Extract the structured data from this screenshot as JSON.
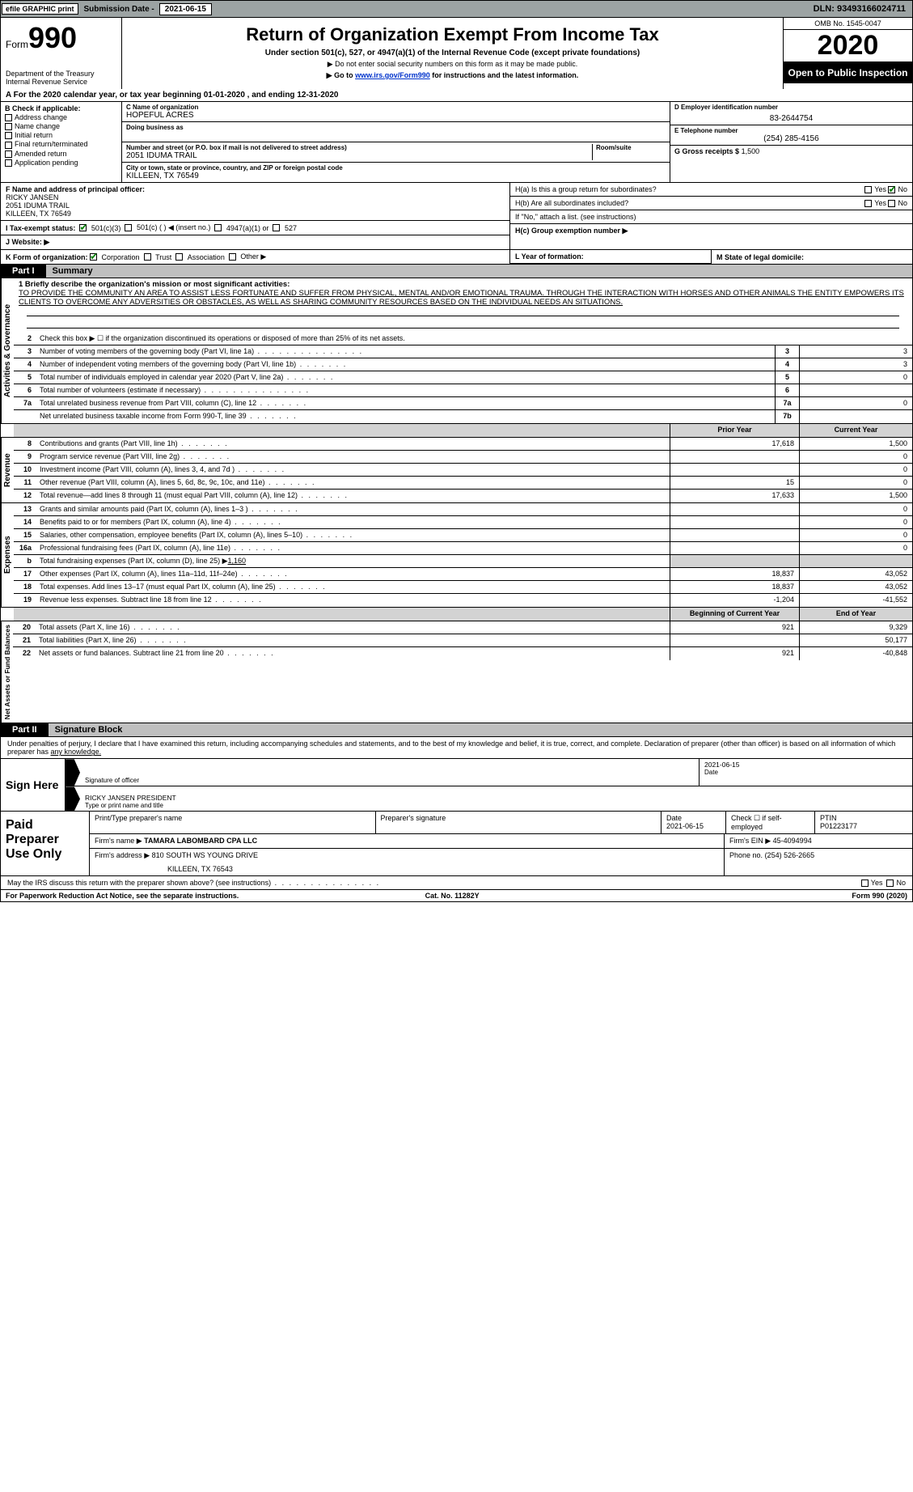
{
  "topbar": {
    "efile": "efile GRAPHIC print",
    "sub_label": "Submission Date -",
    "sub_date": "2021-06-15",
    "dln": "DLN: 93493166024711"
  },
  "header": {
    "form_prefix": "Form",
    "form_no": "990",
    "dept": "Department of the Treasury",
    "irs": "Internal Revenue Service",
    "title": "Return of Organization Exempt From Income Tax",
    "sub1": "Under section 501(c), 527, or 4947(a)(1) of the Internal Revenue Code (except private foundations)",
    "sub2": "▶ Do not enter social security numbers on this form as it may be made public.",
    "sub3_pre": "▶ Go to ",
    "sub3_link": "www.irs.gov/Form990",
    "sub3_post": " for instructions and the latest information.",
    "omb": "OMB No. 1545-0047",
    "year": "2020",
    "open": "Open to Public Inspection"
  },
  "period": {
    "line": "A For the 2020 calendar year, or tax year beginning 01-01-2020   , and ending 12-31-2020"
  },
  "boxB": {
    "hdr": "B Check if applicable:",
    "items": [
      "Address change",
      "Name change",
      "Initial return",
      "Final return/terminated",
      "Amended return",
      "Application pending"
    ]
  },
  "boxC": {
    "lbl": "C Name of organization",
    "name": "HOPEFUL ACRES",
    "dba_lbl": "Doing business as",
    "addr_lbl": "Number and street (or P.O. box if mail is not delivered to street address)",
    "addr": "2051 IDUMA TRAIL",
    "room_lbl": "Room/suite",
    "city_lbl": "City or town, state or province, country, and ZIP or foreign postal code",
    "city": "KILLEEN, TX  76549"
  },
  "boxD": {
    "lbl": "D Employer identification number",
    "val": "83-2644754"
  },
  "boxE": {
    "lbl": "E Telephone number",
    "val": "(254) 285-4156"
  },
  "boxG": {
    "lbl": "G Gross receipts $",
    "val": "1,500"
  },
  "boxF": {
    "lbl": "F  Name and address of principal officer:",
    "name": "RICKY JANSEN",
    "addr1": "2051 IDUMA TRAIL",
    "addr2": "KILLEEN, TX  76549"
  },
  "boxH": {
    "a": "H(a)  Is this a group return for subordinates?",
    "b": "H(b)  Are all subordinates included?",
    "ifno": "If \"No,\" attach a list. (see instructions)",
    "c": "H(c)  Group exemption number ▶",
    "yes": "Yes",
    "no": "No"
  },
  "boxI": {
    "lbl": "I  Tax-exempt status:",
    "o1": "501(c)(3)",
    "o2": "501(c) (   ) ◀ (insert no.)",
    "o3": "4947(a)(1) or",
    "o4": "527"
  },
  "boxJ": {
    "lbl": "J  Website: ▶"
  },
  "boxK": {
    "lbl": "K Form of organization:",
    "o1": "Corporation",
    "o2": "Trust",
    "o3": "Association",
    "o4": "Other ▶"
  },
  "boxL": {
    "lbl": "L Year of formation:"
  },
  "boxM": {
    "lbl": "M State of legal domicile:"
  },
  "part1": {
    "tab": "Part I",
    "title": "Summary"
  },
  "mission": {
    "lbl": "1  Briefly describe the organization's mission or most significant activities:",
    "text": "TO PROVIDE THE COMMUNITY AN AREA TO ASSIST LESS FORTUNATE AND SUFFER FROM PHYSICAL, MENTAL AND/OR EMOTIONAL TRAUMA. THROUGH THE INTERACTION WITH HORSES AND OTHER ANIMALS THE ENTITY EMPOWERS ITS CLIENTS TO OVERCOME ANY ADVERSITIES OR OBSTACLES, AS WELL AS SHARING COMMUNITY RESOURCES BASED ON THE INDIVIDUAL NEEDS AN SITUATIONS."
  },
  "ag": {
    "label": "Activities & Governance",
    "l2": "Check this box ▶ ☐ if the organization discontinued its operations or disposed of more than 25% of its net assets.",
    "l3": "Number of voting members of the governing body (Part VI, line 1a)",
    "l4": "Number of independent voting members of the governing body (Part VI, line 1b)",
    "l5": "Total number of individuals employed in calendar year 2020 (Part V, line 2a)",
    "l6": "Total number of volunteers (estimate if necessary)",
    "l7a": "Total unrelated business revenue from Part VIII, column (C), line 12",
    "l7b": "Net unrelated business taxable income from Form 990-T, line 39",
    "v3": "3",
    "v4": "3",
    "v5": "0",
    "v6": "",
    "v7a": "0",
    "v7b": ""
  },
  "cols": {
    "prior": "Prior Year",
    "current": "Current Year",
    "boy": "Beginning of Current Year",
    "eoy": "End of Year"
  },
  "rev": {
    "label": "Revenue",
    "rows": [
      {
        "n": "8",
        "t": "Contributions and grants (Part VIII, line 1h)",
        "p": "17,618",
        "c": "1,500"
      },
      {
        "n": "9",
        "t": "Program service revenue (Part VIII, line 2g)",
        "p": "",
        "c": "0"
      },
      {
        "n": "10",
        "t": "Investment income (Part VIII, column (A), lines 3, 4, and 7d )",
        "p": "",
        "c": "0"
      },
      {
        "n": "11",
        "t": "Other revenue (Part VIII, column (A), lines 5, 6d, 8c, 9c, 10c, and 11e)",
        "p": "15",
        "c": "0"
      },
      {
        "n": "12",
        "t": "Total revenue—add lines 8 through 11 (must equal Part VIII, column (A), line 12)",
        "p": "17,633",
        "c": "1,500"
      }
    ]
  },
  "exp": {
    "label": "Expenses",
    "rows": [
      {
        "n": "13",
        "t": "Grants and similar amounts paid (Part IX, column (A), lines 1–3 )",
        "p": "",
        "c": "0"
      },
      {
        "n": "14",
        "t": "Benefits paid to or for members (Part IX, column (A), line 4)",
        "p": "",
        "c": "0"
      },
      {
        "n": "15",
        "t": "Salaries, other compensation, employee benefits (Part IX, column (A), lines 5–10)",
        "p": "",
        "c": "0"
      },
      {
        "n": "16a",
        "t": "Professional fundraising fees (Part IX, column (A), line 11e)",
        "p": "",
        "c": "0"
      },
      {
        "n": "b",
        "t": "Total fundraising expenses (Part IX, column (D), line 25) ▶1,160",
        "p": "SHADE",
        "c": "SHADE"
      },
      {
        "n": "17",
        "t": "Other expenses (Part IX, column (A), lines 11a–11d, 11f–24e)",
        "p": "18,837",
        "c": "43,052"
      },
      {
        "n": "18",
        "t": "Total expenses. Add lines 13–17 (must equal Part IX, column (A), line 25)",
        "p": "18,837",
        "c": "43,052"
      },
      {
        "n": "19",
        "t": "Revenue less expenses. Subtract line 18 from line 12",
        "p": "-1,204",
        "c": "-41,552"
      }
    ]
  },
  "na": {
    "label": "Net Assets or Fund Balances",
    "rows": [
      {
        "n": "20",
        "t": "Total assets (Part X, line 16)",
        "p": "921",
        "c": "9,329"
      },
      {
        "n": "21",
        "t": "Total liabilities (Part X, line 26)",
        "p": "",
        "c": "50,177"
      },
      {
        "n": "22",
        "t": "Net assets or fund balances. Subtract line 21 from line 20",
        "p": "921",
        "c": "-40,848"
      }
    ]
  },
  "part2": {
    "tab": "Part II",
    "title": "Signature Block"
  },
  "sig": {
    "intro": "Under penalties of perjury, I declare that I have examined this return, including accompanying schedules and statements, and to the best of my knowledge and belief, it is true, correct, and complete. Declaration of preparer (other than officer) is based on all information of which preparer has ",
    "intro_u": "any knowledge.",
    "sign_here": "Sign Here",
    "sig_of": "Signature of officer",
    "date": "Date",
    "date_val": "2021-06-15",
    "typed": "RICKY JANSEN  PRESIDENT",
    "typed_lbl": "Type or print name and title"
  },
  "prep": {
    "hdr": "Paid Preparer Use Only",
    "c1": "Print/Type preparer's name",
    "c2": "Preparer's signature",
    "c3": "Date",
    "c3v": "2021-06-15",
    "c4": "Check ☐ if self-employed",
    "c5": "PTIN",
    "c5v": "P01223177",
    "firm_lbl": "Firm's name    ▶",
    "firm": "TAMARA LABOMBARD CPA LLC",
    "ein_lbl": "Firm's EIN ▶",
    "ein": "45-4094994",
    "addr_lbl": "Firm's address ▶",
    "addr1": "810 SOUTH WS YOUNG DRIVE",
    "addr2": "KILLEEN, TX  76543",
    "phone_lbl": "Phone no.",
    "phone": "(254) 526-2665"
  },
  "discuss": {
    "q": "May the IRS discuss this return with the preparer shown above? (see instructions)",
    "yes": "Yes",
    "no": "No"
  },
  "footer": {
    "l": "For Paperwork Reduction Act Notice, see the separate instructions.",
    "m": "Cat. No. 11282Y",
    "r": "Form 990 (2020)"
  }
}
